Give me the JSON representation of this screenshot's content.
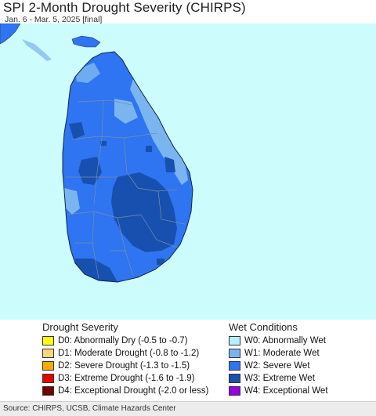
{
  "header": {
    "title": "SPI 2-Month Drought Severity (CHIRPS)",
    "subtitle": "Jan. 6 - Mar. 5, 2025 [final]"
  },
  "colors": {
    "ocean": "#cdfcfc",
    "W0": "#b6f0ff",
    "W1": "#7ab5f0",
    "W2": "#2f74f0",
    "W3": "#1850b0",
    "W4": "#9b00e0",
    "D0": "#ffff00",
    "D1": "#fcd37f",
    "D2": "#ffaa00",
    "D3": "#e60000",
    "D4": "#730000",
    "boundary": "#7a8ea8"
  },
  "legend": {
    "drought": {
      "title": "Drought Severity",
      "items": [
        {
          "label": "D0: Abnormally Dry (-0.5 to -0.7)",
          "color": "#ffff00"
        },
        {
          "label": "D1: Moderate Drought (-0.8 to -1.2)",
          "color": "#fcd37f"
        },
        {
          "label": "D2: Severe Drought (-1.3 to -1.5)",
          "color": "#ffaa00"
        },
        {
          "label": "D3: Extreme Drought (-1.6 to -1.9)",
          "color": "#e60000"
        },
        {
          "label": "D4: Exceptional Drought (-2.0 or less)",
          "color": "#730000"
        }
      ]
    },
    "wet": {
      "title": "Wet Conditions",
      "items": [
        {
          "label": "W0: Abnormally Wet",
          "color": "#b6f0ff"
        },
        {
          "label": "W1: Moderate Wet",
          "color": "#7ab5f0"
        },
        {
          "label": "W2: Severe Wet",
          "color": "#2f74f0"
        },
        {
          "label": "W3: Extreme Wet",
          "color": "#1850b0"
        },
        {
          "label": "W4: Exceptional Wet",
          "color": "#9b00e0"
        }
      ]
    }
  },
  "footer": {
    "source": "Source: CHIRPS, UCSB, Climate Hazards Center"
  }
}
